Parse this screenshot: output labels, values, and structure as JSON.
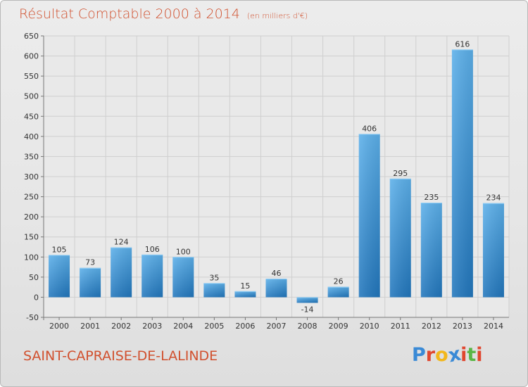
{
  "header": {
    "title": "Résultat Comptable 2000 à 2014",
    "subtitle": "(en milliers d'€)"
  },
  "footer": {
    "commune": "SAINT-CAPRAISE-DE-LALINDE",
    "logo_letters": [
      "P",
      "r",
      "o",
      "x",
      "i",
      "t",
      "i"
    ],
    "logo_colors": [
      "#3a8ad6",
      "#e0472f",
      "#f2b71b",
      "#3a8ad6",
      "#e0472f",
      "#5ab646",
      "#e0472f"
    ]
  },
  "chart_data": {
    "type": "bar",
    "title": "Résultat Comptable 2000 à 2014",
    "subtitle": "(en milliers d'€)",
    "xlabel": "",
    "ylabel": "",
    "categories": [
      "2000",
      "2001",
      "2002",
      "2003",
      "2004",
      "2005",
      "2006",
      "2007",
      "2008",
      "2009",
      "2010",
      "2011",
      "2012",
      "2013",
      "2014"
    ],
    "values": [
      105,
      73,
      124,
      106,
      100,
      35,
      15,
      46,
      -14,
      26,
      406,
      295,
      235,
      616,
      234
    ],
    "value_labels": [
      "105",
      "73",
      "124",
      "106",
      "100",
      "35",
      "15",
      "46",
      "-14",
      "26",
      "406",
      "295",
      "235",
      "616",
      "234"
    ],
    "ylim": [
      -50,
      650
    ],
    "yticks": [
      -50,
      0,
      50,
      100,
      150,
      200,
      250,
      300,
      350,
      400,
      450,
      500,
      550,
      600,
      650
    ],
    "grid": true,
    "bar_color": "#3f95d8"
  }
}
